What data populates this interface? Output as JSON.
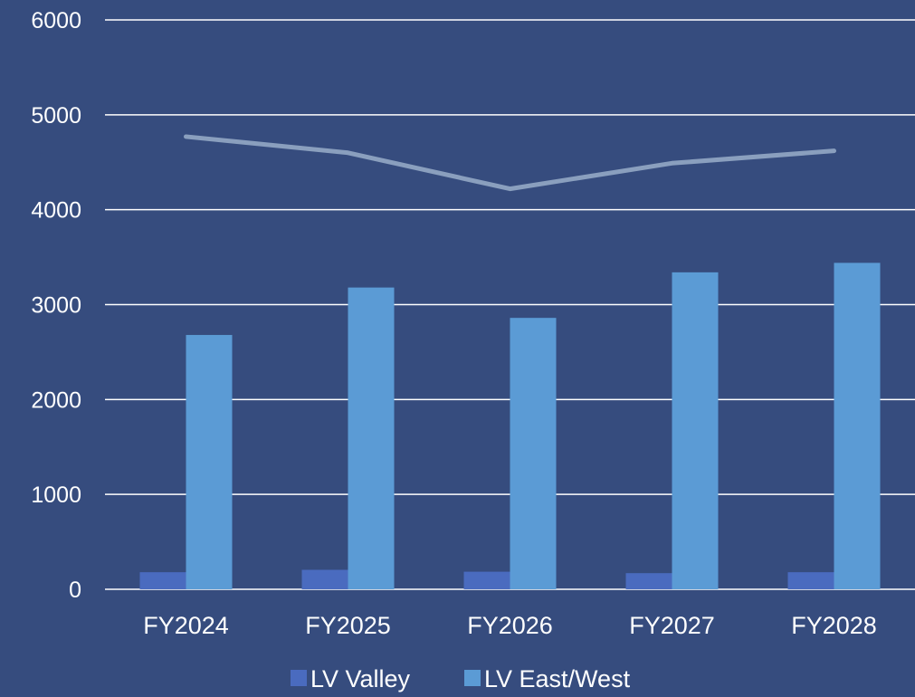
{
  "chart_data": {
    "type": "bar",
    "categories": [
      "FY2024",
      "FY2025",
      "FY2026",
      "FY2027",
      "FY2028"
    ],
    "ylim": [
      0,
      6000
    ],
    "yticks": [
      0,
      1000,
      2000,
      3000,
      4000,
      5000,
      6000
    ],
    "grid": true,
    "legend_position": "bottom",
    "series": [
      {
        "name": "LV Valley",
        "type": "bar",
        "color": "#4a6bbf",
        "values": [
          180,
          205,
          185,
          170,
          180
        ]
      },
      {
        "name": "LV East/West",
        "type": "bar",
        "color": "#5b9bd5",
        "values": [
          2680,
          3180,
          2860,
          3340,
          3440
        ]
      },
      {
        "type": "line",
        "color": "#8a9fbe",
        "values": [
          4770,
          4600,
          4220,
          4490,
          4620
        ]
      }
    ]
  }
}
